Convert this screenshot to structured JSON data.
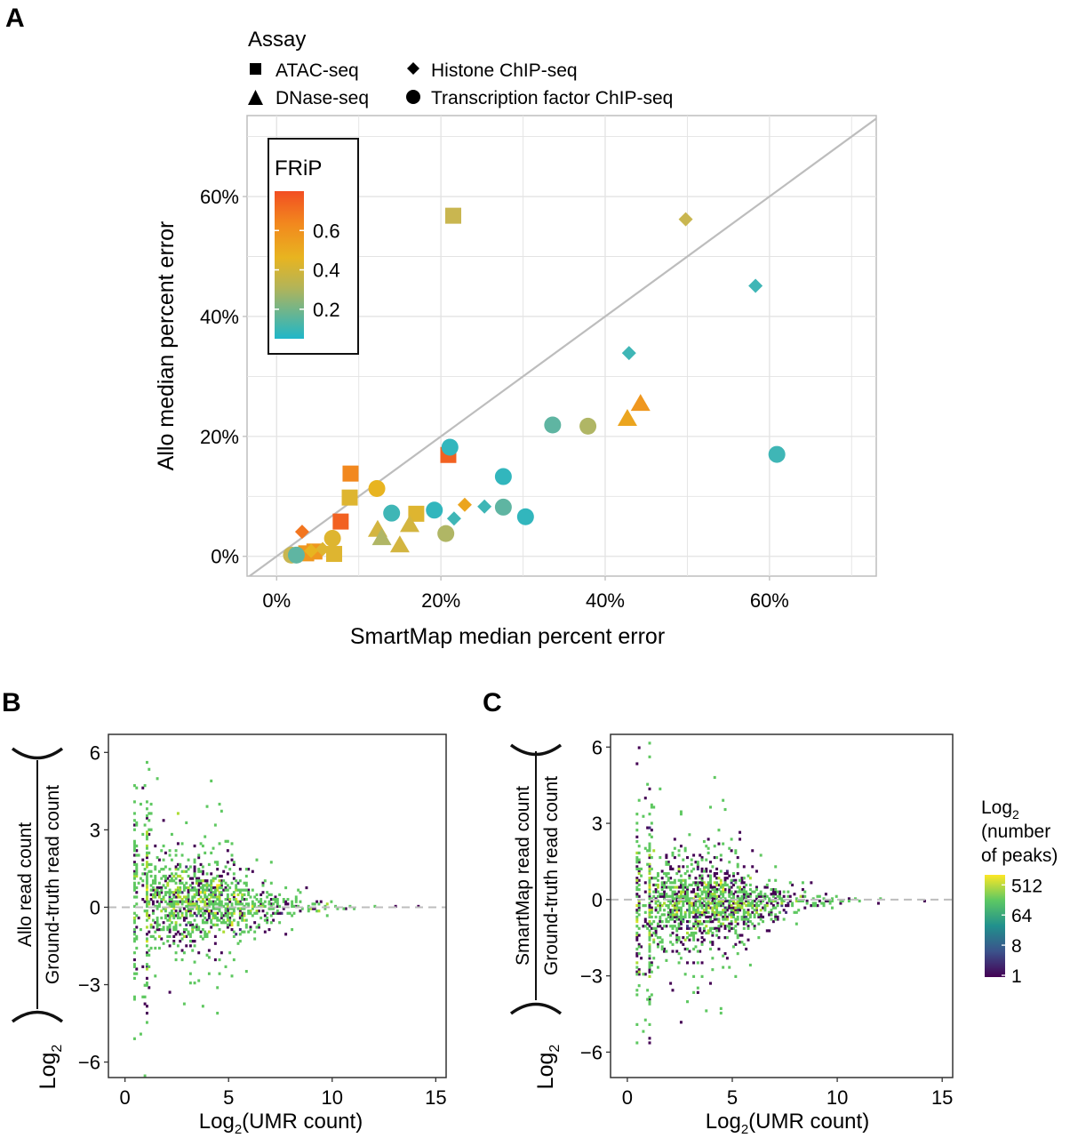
{
  "chart_data": [
    {
      "panel": "A",
      "type": "scatter",
      "title": "",
      "xlabel": "SmartMap median percent error",
      "ylabel": "Allo median percent error",
      "xlim": [
        -3.6,
        73
      ],
      "ylim": [
        -3.3,
        73.5
      ],
      "xticks": [
        0,
        20,
        40,
        60
      ],
      "yticks": [
        0,
        20,
        40,
        60
      ],
      "xtick_labels": [
        "0%",
        "20%",
        "40%",
        "60%"
      ],
      "ytick_labels": [
        "0%",
        "20%",
        "40%",
        "60%"
      ],
      "grid": true,
      "reference_line": "y = x",
      "shape_legend": {
        "title": "Assay",
        "placement": "top",
        "entries": [
          {
            "label": "ATAC-seq",
            "shape": "square"
          },
          {
            "label": "Histone ChIP-seq",
            "shape": "diamond"
          },
          {
            "label": "DNase-seq",
            "shape": "triangle"
          },
          {
            "label": "Transcription factor ChIP-seq",
            "shape": "circle"
          }
        ]
      },
      "color_legend": {
        "title": "FRiP",
        "placement": "top-left inside",
        "range": [
          0.05,
          0.8
        ],
        "ticks": [
          0.2,
          0.4,
          0.6
        ],
        "tick_labels": [
          "0.2",
          "0.4",
          "0.6"
        ],
        "colors": [
          "#21b5c8",
          "#d2b84a",
          "#f0b21e",
          "#f4501e"
        ]
      },
      "series": [
        {
          "name": "ATAC-seq",
          "shape": "square",
          "points": [
            {
              "x": 21.5,
              "y": 56.8,
              "frip": 0.35
            },
            {
              "x": 9.0,
              "y": 13.8,
              "frip": 0.65
            },
            {
              "x": 8.9,
              "y": 9.8,
              "frip": 0.45
            },
            {
              "x": 7.8,
              "y": 5.8,
              "frip": 0.75
            },
            {
              "x": 20.9,
              "y": 16.9,
              "frip": 0.75
            },
            {
              "x": 17.0,
              "y": 7.1,
              "frip": 0.45
            },
            {
              "x": 7.0,
              "y": 0.4,
              "frip": 0.45
            },
            {
              "x": 3.6,
              "y": 0.5,
              "frip": 0.6
            },
            {
              "x": 4.6,
              "y": 0.8,
              "frip": 0.6
            }
          ]
        },
        {
          "name": "Histone ChIP-seq",
          "shape": "diamond",
          "points": [
            {
              "x": 49.8,
              "y": 56.2,
              "frip": 0.35
            },
            {
              "x": 58.3,
              "y": 45.1,
              "frip": 0.1
            },
            {
              "x": 42.9,
              "y": 33.9,
              "frip": 0.1
            },
            {
              "x": 3.1,
              "y": 4.1,
              "frip": 0.7
            },
            {
              "x": 5.6,
              "y": 1.2,
              "frip": 0.45
            },
            {
              "x": 4.2,
              "y": 0.9,
              "frip": 0.5
            },
            {
              "x": 22.9,
              "y": 8.6,
              "frip": 0.55
            },
            {
              "x": 21.6,
              "y": 6.3,
              "frip": 0.1
            },
            {
              "x": 25.3,
              "y": 8.3,
              "frip": 0.1
            }
          ]
        },
        {
          "name": "DNase-seq",
          "shape": "triangle",
          "points": [
            {
              "x": 44.3,
              "y": 25.6,
              "frip": 0.6
            },
            {
              "x": 42.7,
              "y": 23.1,
              "frip": 0.55
            },
            {
              "x": 12.3,
              "y": 4.6,
              "frip": 0.4
            },
            {
              "x": 12.8,
              "y": 3.2,
              "frip": 0.3
            },
            {
              "x": 15.0,
              "y": 2.0,
              "frip": 0.4
            },
            {
              "x": 16.2,
              "y": 5.4,
              "frip": 0.4
            }
          ]
        },
        {
          "name": "Transcription factor ChIP-seq",
          "shape": "circle",
          "points": [
            {
              "x": 1.8,
              "y": 0.2,
              "frip": 0.35
            },
            {
              "x": 2.4,
              "y": 0.2,
              "frip": 0.15
            },
            {
              "x": 6.8,
              "y": 3.0,
              "frip": 0.45
            },
            {
              "x": 12.2,
              "y": 11.3,
              "frip": 0.5
            },
            {
              "x": 21.1,
              "y": 18.2,
              "frip": 0.08
            },
            {
              "x": 14.0,
              "y": 7.2,
              "frip": 0.1
            },
            {
              "x": 19.2,
              "y": 7.7,
              "frip": 0.08
            },
            {
              "x": 20.6,
              "y": 3.8,
              "frip": 0.3
            },
            {
              "x": 27.6,
              "y": 13.3,
              "frip": 0.08
            },
            {
              "x": 27.6,
              "y": 8.2,
              "frip": 0.15
            },
            {
              "x": 30.3,
              "y": 6.6,
              "frip": 0.08
            },
            {
              "x": 33.6,
              "y": 21.9,
              "frip": 0.15
            },
            {
              "x": 37.9,
              "y": 21.7,
              "frip": 0.3
            },
            {
              "x": 60.9,
              "y": 17.0,
              "frip": 0.1
            }
          ]
        }
      ]
    },
    {
      "panel": "B",
      "type": "heatmap",
      "subtype": "2d-histogram (MA-style)",
      "xlabel_prefix": "Log",
      "xlabel_sub": "2",
      "xlabel_suffix": "(UMR count)",
      "ylabel_prefix": "Log",
      "ylabel_sub": "2",
      "ylabel_numerator": "Allo read count",
      "ylabel_denominator": "Ground-truth read count",
      "xlim": [
        -0.8,
        15.5
      ],
      "ylim": [
        -6.6,
        6.7
      ],
      "xticks": [
        0,
        5,
        10,
        15
      ],
      "yticks": [
        -6,
        -3,
        0,
        3,
        6
      ],
      "xtick_labels": [
        "0",
        "5",
        "10",
        "15"
      ],
      "ytick_labels": [
        "−6",
        "−3",
        "0",
        "3",
        "6"
      ],
      "reference_line": "y = 0 (dashed)",
      "density_shape": {
        "x_center": 3.5,
        "upper_spread_peak": 5.8,
        "lower_spread_peak": -5.8,
        "bias": "positive skew (upper spread larger)",
        "taper_end_x": 13.5
      }
    },
    {
      "panel": "C",
      "type": "heatmap",
      "subtype": "2d-histogram (MA-style)",
      "xlabel_prefix": "Log",
      "xlabel_sub": "2",
      "xlabel_suffix": "(UMR count)",
      "ylabel_prefix": "Log",
      "ylabel_sub": "2",
      "ylabel_numerator": "SmartMap read count",
      "ylabel_denominator": "Ground-truth read count",
      "xlim": [
        -0.8,
        15.5
      ],
      "ylim": [
        -7.0,
        6.5
      ],
      "xticks": [
        0,
        5,
        10,
        15
      ],
      "yticks": [
        -6,
        -3,
        0,
        3,
        6
      ],
      "xtick_labels": [
        "0",
        "5",
        "10",
        "15"
      ],
      "ytick_labels": [
        "−6",
        "−3",
        "0",
        "3",
        "6"
      ],
      "reference_line": "y = 0 (dashed)",
      "density_shape": {
        "x_center": 3.5,
        "upper_spread_peak": 5.5,
        "lower_spread_peak": -6.5,
        "bias": "negative skew (lower spread larger)",
        "taper_end_x": 14.5
      },
      "color_legend": {
        "title_prefix": "Log",
        "title_sub": "2",
        "title_line2": "(number",
        "title_line3": "of peaks)",
        "scale": "log2",
        "ticks": [
          1,
          8,
          64,
          512
        ],
        "tick_labels": [
          "1",
          "8",
          "64",
          "512"
        ],
        "colors": [
          "#440154",
          "#3b528b",
          "#21908d",
          "#5dc863",
          "#fde725"
        ]
      }
    }
  ],
  "panel_labels": [
    "A",
    "B",
    "C"
  ]
}
